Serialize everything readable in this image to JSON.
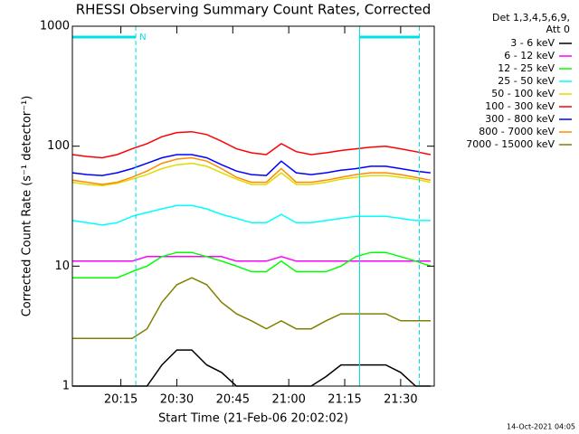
{
  "chart_data": {
    "type": "line",
    "title": "RHESSI Observing Summary Count Rates, Corrected",
    "xlabel": "Start Time (21-Feb-06 20:02:02)",
    "ylabel": "Corrected Count Rate (s⁻¹ detector⁻¹)",
    "legend_title": [
      "Det 1,3,4,5,6,9,",
      "Att 0"
    ],
    "timestamp": "14-Oct-2021 04:05",
    "ylog": true,
    "legend": "right",
    "xlim": [
      "20:02",
      "21:39"
    ],
    "xticks": [
      "20:15",
      "20:30",
      "20:45",
      "21:00",
      "21:15",
      "21:30"
    ],
    "ylim": [
      1,
      1000
    ],
    "yticks": [
      1,
      10,
      100,
      1000
    ],
    "flags": [
      {
        "start": "20:02",
        "end": "20:19",
        "label": "N"
      },
      {
        "start": "21:19",
        "end": "21:35"
      }
    ],
    "flag_color": "#00e0e0",
    "x": [
      "20:02",
      "20:06",
      "20:10",
      "20:14",
      "20:18",
      "20:22",
      "20:26",
      "20:30",
      "20:34",
      "20:38",
      "20:42",
      "20:46",
      "20:50",
      "20:54",
      "20:58",
      "21:02",
      "21:06",
      "21:10",
      "21:14",
      "21:18",
      "21:22",
      "21:26",
      "21:30",
      "21:34",
      "21:38"
    ],
    "series": [
      {
        "name": "3 - 6 keV",
        "color": "#000000",
        "values": [
          1,
          1,
          1,
          1,
          1,
          1,
          1.5,
          2,
          2,
          1.5,
          1.3,
          1,
          1,
          1,
          1,
          1,
          1,
          1.2,
          1.5,
          1.5,
          1.5,
          1.5,
          1.3,
          1,
          1
        ]
      },
      {
        "name": "6 - 12 keV",
        "color": "#ff00ff",
        "values": [
          11,
          11,
          11,
          11,
          11,
          12,
          12,
          12,
          12,
          12,
          12,
          11,
          11,
          11,
          12,
          11,
          11,
          11,
          11,
          11,
          11,
          11,
          11,
          11,
          11
        ]
      },
      {
        "name": "12 - 25 keV",
        "color": "#00ff00",
        "values": [
          8,
          8,
          8,
          8,
          9,
          10,
          12,
          13,
          13,
          12,
          11,
          10,
          9,
          9,
          11,
          9,
          9,
          9,
          10,
          12,
          13,
          13,
          12,
          11,
          10
        ]
      },
      {
        "name": "25 - 50 keV",
        "color": "#00ffff",
        "values": [
          24,
          23,
          22,
          23,
          26,
          28,
          30,
          32,
          32,
          30,
          27,
          25,
          23,
          23,
          27,
          23,
          23,
          24,
          25,
          26,
          26,
          26,
          25,
          24,
          24
        ]
      },
      {
        "name": "50 - 100 keV",
        "color": "#dddd00",
        "values": [
          50,
          48,
          47,
          49,
          53,
          58,
          65,
          70,
          72,
          68,
          60,
          53,
          48,
          48,
          60,
          48,
          48,
          50,
          53,
          55,
          57,
          57,
          55,
          53,
          50
        ]
      },
      {
        "name": "100 - 300 keV",
        "color": "#ff0000",
        "values": [
          85,
          82,
          80,
          85,
          95,
          105,
          120,
          130,
          132,
          125,
          110,
          95,
          88,
          85,
          105,
          90,
          85,
          88,
          92,
          95,
          98,
          100,
          95,
          90,
          85
        ]
      },
      {
        "name": "300 - 800 keV",
        "color": "#0000ff",
        "values": [
          60,
          58,
          57,
          60,
          65,
          72,
          80,
          85,
          85,
          80,
          70,
          62,
          58,
          57,
          75,
          60,
          58,
          60,
          63,
          65,
          68,
          68,
          65,
          62,
          60
        ]
      },
      {
        "name": "800 - 7000 keV",
        "color": "#ff8c00",
        "values": [
          52,
          50,
          48,
          50,
          55,
          62,
          72,
          78,
          80,
          75,
          65,
          55,
          50,
          50,
          65,
          50,
          50,
          52,
          55,
          58,
          60,
          60,
          58,
          55,
          52
        ]
      },
      {
        "name": "7000 - 15000 keV",
        "color": "#808000",
        "values": [
          2.5,
          2.5,
          2.5,
          2.5,
          2.5,
          3,
          5,
          7,
          8,
          7,
          5,
          4,
          3.5,
          3,
          3.5,
          3,
          3,
          3.5,
          4,
          4,
          4,
          4,
          3.5,
          3.5,
          3.5
        ]
      }
    ]
  }
}
